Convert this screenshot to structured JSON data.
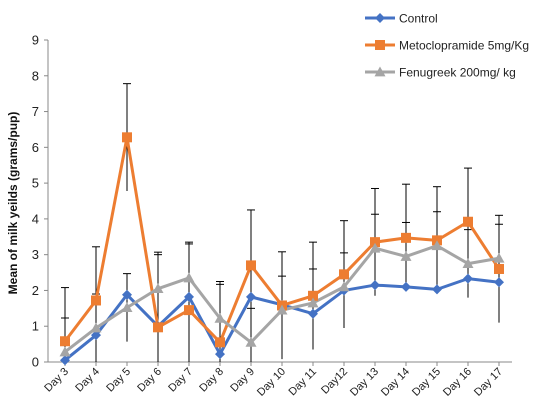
{
  "chart_data": {
    "type": "line",
    "title": "",
    "xlabel": "",
    "ylabel": "Mean of milk yeilds (grams/pup)",
    "ylim": [
      0,
      9
    ],
    "yticks": [
      0,
      1,
      2,
      3,
      4,
      5,
      6,
      7,
      8,
      9
    ],
    "grid": false,
    "legend_position": "top-right",
    "categories": [
      "Day 3",
      "Day 4",
      "Day 5",
      "Day 6",
      "Day 7",
      "Day 8",
      "Day 9",
      "Day 10",
      "Day 11",
      "Day12",
      "Day 13",
      "Day 14",
      "Day 15",
      "Day 16",
      "Day 17"
    ],
    "series": [
      {
        "name": "Control",
        "color": "#4472C4",
        "marker": "diamond",
        "values": [
          0.05,
          0.75,
          1.88,
          1.0,
          1.82,
          0.22,
          1.82,
          1.6,
          1.35,
          2.0,
          2.15,
          2.1,
          2.03,
          2.33,
          2.23
        ]
      },
      {
        "name": "Metoclopramide 5mg/Kg",
        "color": "#ED7D31",
        "marker": "square",
        "values": [
          0.58,
          1.72,
          6.28,
          0.97,
          1.45,
          0.55,
          2.7,
          1.58,
          1.85,
          2.45,
          3.35,
          3.47,
          3.4,
          3.92,
          2.6
        ],
        "error": [
          1.5,
          1.5,
          1.5,
          2.1,
          1.9,
          1.7,
          1.55,
          1.5,
          1.5,
          1.5,
          1.5,
          1.5,
          1.5,
          1.5,
          1.5
        ]
      },
      {
        "name": "Fenugreek 200mg/ kg",
        "color": "#A5A5A5",
        "marker": "triangle",
        "values": [
          0.28,
          0.95,
          1.52,
          2.05,
          2.35,
          1.22,
          0.55,
          1.45,
          1.65,
          2.1,
          3.18,
          2.95,
          3.25,
          2.75,
          2.9
        ],
        "error": [
          0.95,
          0.95,
          0.95,
          0.95,
          0.95,
          0.95,
          0.95,
          0.95,
          0.95,
          0.95,
          0.95,
          0.95,
          0.95,
          0.95,
          0.95
        ]
      }
    ]
  }
}
